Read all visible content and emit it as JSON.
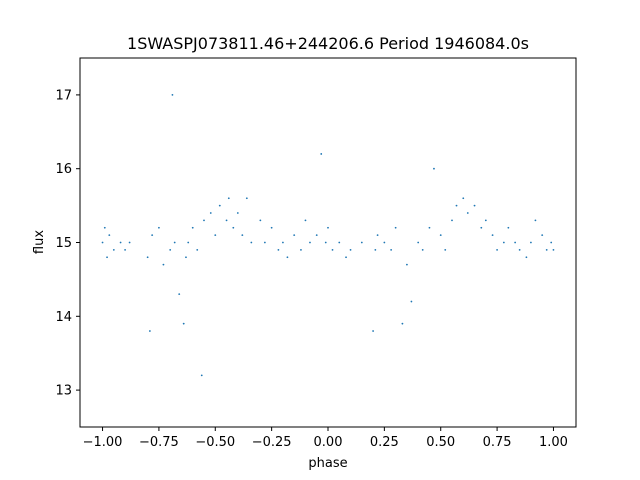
{
  "chart_data": {
    "type": "scatter",
    "title": "1SWASPJ073811.46+244206.6 Period 1946084.0s",
    "xlabel": "phase",
    "ylabel": "flux",
    "xlim": [
      -1.1,
      1.1
    ],
    "ylim": [
      12.5,
      17.5
    ],
    "xticks": [
      -1.0,
      -0.75,
      -0.5,
      -0.25,
      0.0,
      0.25,
      0.5,
      0.75,
      1.0
    ],
    "xtick_labels": [
      "−1.00",
      "−0.75",
      "−0.50",
      "−0.25",
      "0.00",
      "0.25",
      "0.50",
      "0.75",
      "1.00"
    ],
    "yticks": [
      13,
      14,
      15,
      16,
      17
    ],
    "ytick_labels": [
      "13",
      "14",
      "15",
      "16",
      "17"
    ],
    "grid": false,
    "marker_color": "#1f77b4",
    "series": [
      {
        "description_note": "",
        "x": [
          -1.0,
          -0.99,
          -0.98,
          -0.97,
          -0.95,
          -0.92,
          -0.9,
          -0.88,
          -0.8,
          -0.79,
          -0.78,
          -0.75,
          -0.73,
          -0.7,
          -0.69,
          -0.68,
          -0.66,
          -0.64,
          -0.63,
          -0.62,
          -0.6,
          -0.58,
          -0.56,
          -0.55,
          -0.52,
          -0.5,
          -0.48,
          -0.45,
          -0.44,
          -0.42,
          -0.4,
          -0.38,
          -0.36,
          -0.34,
          -0.3,
          -0.28,
          -0.25,
          -0.22,
          -0.2,
          -0.18,
          -0.15,
          -0.12,
          -0.1,
          -0.08,
          -0.05,
          -0.03,
          -0.01,
          0.0,
          0.02,
          0.05,
          0.08,
          0.1,
          0.15,
          0.2,
          0.21,
          0.22,
          0.25,
          0.28,
          0.3,
          0.33,
          0.35,
          0.37,
          0.4,
          0.42,
          0.45,
          0.47,
          0.5,
          0.52,
          0.55,
          0.57,
          0.6,
          0.62,
          0.65,
          0.68,
          0.7,
          0.73,
          0.75,
          0.78,
          0.8,
          0.83,
          0.85,
          0.88,
          0.9,
          0.92,
          0.95,
          0.97,
          0.99,
          1.0
        ],
        "y": [
          15.0,
          15.2,
          14.8,
          15.1,
          14.9,
          15.0,
          14.9,
          15.0,
          14.8,
          13.8,
          15.1,
          15.2,
          14.7,
          14.9,
          17.0,
          15.0,
          14.3,
          13.9,
          14.8,
          15.0,
          15.2,
          14.9,
          13.2,
          15.3,
          15.4,
          15.1,
          15.5,
          15.3,
          15.6,
          15.2,
          15.4,
          15.1,
          15.6,
          15.0,
          15.3,
          15.0,
          15.2,
          14.9,
          15.0,
          14.8,
          15.1,
          14.9,
          15.3,
          15.0,
          15.1,
          16.2,
          15.0,
          15.2,
          14.9,
          15.0,
          14.8,
          14.9,
          15.0,
          13.8,
          14.9,
          15.1,
          15.0,
          14.9,
          15.2,
          13.9,
          14.7,
          14.2,
          15.0,
          14.9,
          15.2,
          16.0,
          15.1,
          14.9,
          15.3,
          15.5,
          15.6,
          15.4,
          15.5,
          15.2,
          15.3,
          15.1,
          14.9,
          15.0,
          15.2,
          15.0,
          14.9,
          14.8,
          15.0,
          15.3,
          15.1,
          14.9,
          15.0,
          14.9
        ]
      }
    ]
  }
}
